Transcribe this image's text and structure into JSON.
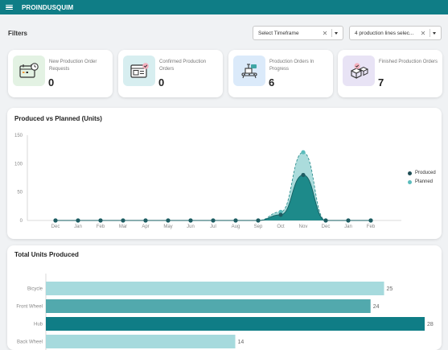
{
  "app": {
    "title": "PROINDUSQUIM"
  },
  "filters": {
    "label": "Filters",
    "timeframe": {
      "value": "Select Timeframe"
    },
    "lines": {
      "value": "4 production lines selec..."
    }
  },
  "kpis": [
    {
      "label": "New Production Order Requests",
      "value": "0",
      "icon": "calendar-clock-icon",
      "bg": "#e3f2e3"
    },
    {
      "label": "Confirmed Production Orders",
      "value": "0",
      "icon": "browser-check-icon",
      "bg": "#d7eef0"
    },
    {
      "label": "Production Orders In Progress",
      "value": "6",
      "icon": "conveyor-icon",
      "bg": "#dbeafa"
    },
    {
      "label": "Finished Production Orders",
      "value": "7",
      "icon": "boxes-check-icon",
      "bg": "#e8e3f5"
    }
  ],
  "colors": {
    "brand": "#0f7d86",
    "produced": "#1d8a8a",
    "planned": "#5bbcbc",
    "bar1": "#a6dadd",
    "bar2": "#52a9ad",
    "bar3": "#0f7d86"
  },
  "chart_data": [
    {
      "type": "area",
      "title": "Produced vs Planned (Units)",
      "categories": [
        "Dec",
        "Jan",
        "Feb",
        "Mar",
        "Apr",
        "May",
        "Jun",
        "Jul",
        "Aug",
        "Sep",
        "Oct",
        "Nov",
        "Dec",
        "Jan",
        "Feb"
      ],
      "series": [
        {
          "name": "Produced",
          "values": [
            0,
            0,
            0,
            0,
            0,
            0,
            0,
            0,
            0,
            0,
            10,
            80,
            0,
            0,
            0
          ]
        },
        {
          "name": "Planned",
          "values": [
            0,
            0,
            0,
            0,
            0,
            0,
            0,
            0,
            0,
            0,
            15,
            120,
            0,
            0,
            0
          ]
        }
      ],
      "yticks": [
        0,
        50,
        100,
        150
      ],
      "ylim": [
        0,
        150
      ],
      "legend": "right"
    },
    {
      "type": "bar",
      "title": "Total Units Produced",
      "orientation": "horizontal",
      "categories": [
        "Bicycle",
        "Front Wheel",
        "Hub",
        "Back Wheel"
      ],
      "values": [
        25,
        24,
        28,
        14
      ],
      "xlim": [
        0,
        28
      ]
    }
  ]
}
